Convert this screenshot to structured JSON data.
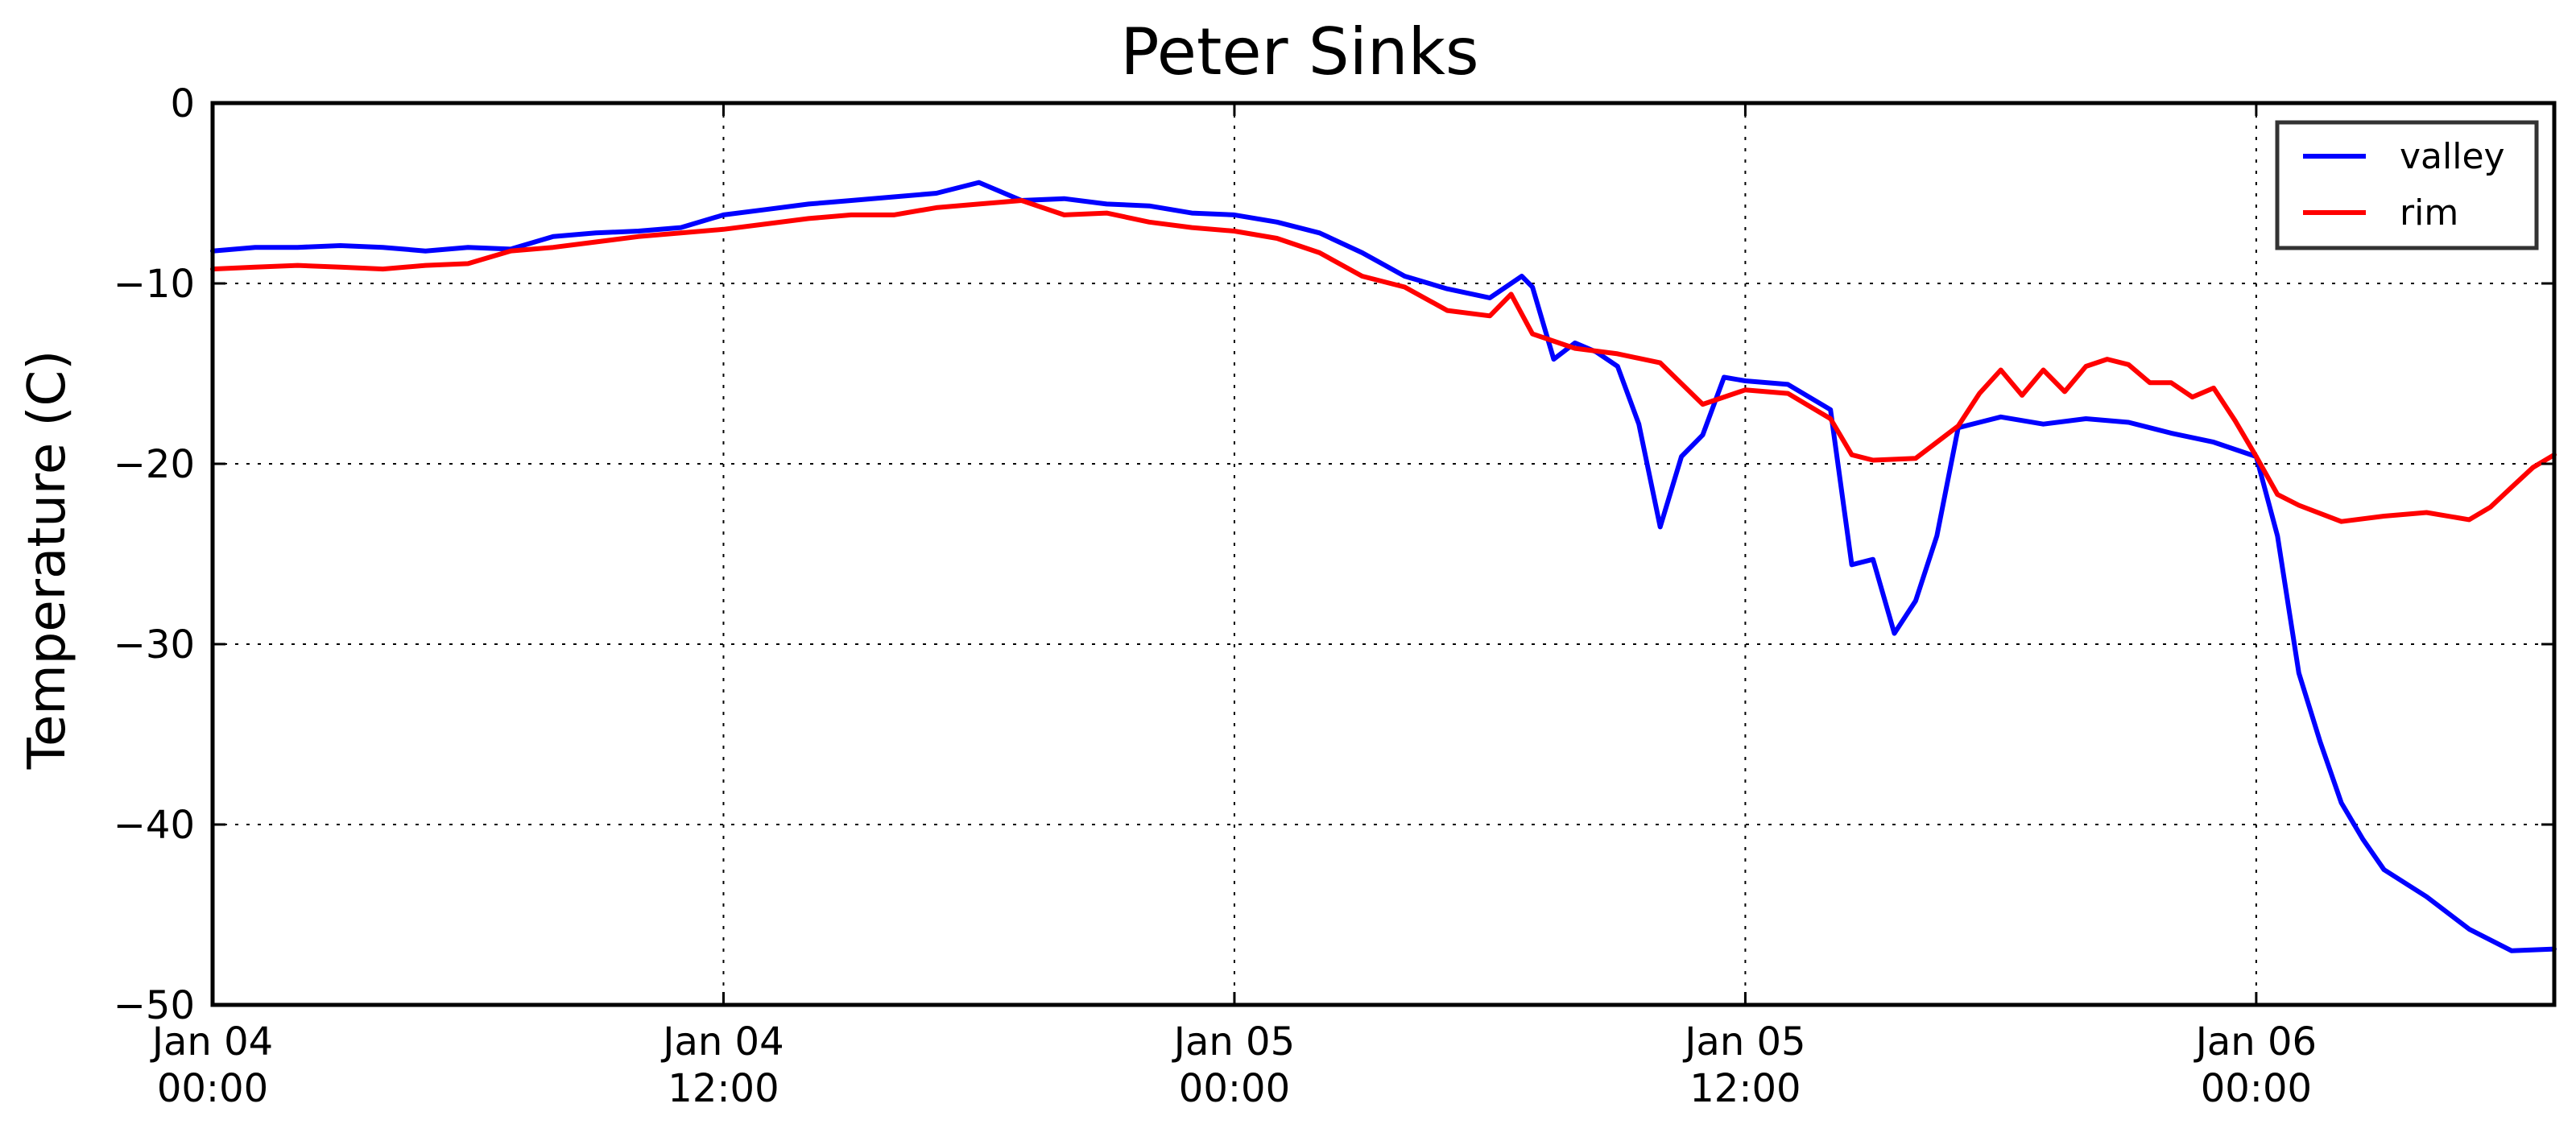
{
  "chart_data": {
    "type": "line",
    "title": "Peter Sinks",
    "xlabel": "",
    "ylabel": "Temperature (C)",
    "ylim": [
      -50,
      0
    ],
    "xlim": [
      "2016-01-04 00:00",
      "2016-01-06 07:00"
    ],
    "y_ticks": [
      0,
      -10,
      -20,
      -30,
      -40,
      -50
    ],
    "y_tick_labels": [
      "0",
      "−10",
      "−20",
      "−30",
      "−40",
      "−50"
    ],
    "x_ticks": [
      "2016-01-04 00:00",
      "2016-01-04 12:00",
      "2016-01-05 00:00",
      "2016-01-05 12:00",
      "2016-01-06 00:00"
    ],
    "x_tick_labels": [
      [
        "Jan 04",
        "00:00"
      ],
      [
        "Jan 04",
        "12:00"
      ],
      [
        "Jan 05",
        "00:00"
      ],
      [
        "Jan 05",
        "12:00"
      ],
      [
        "Jan 06",
        "00:00"
      ]
    ],
    "grid": true,
    "legend_position": "top-right",
    "series": [
      {
        "name": "valley",
        "color": "#0000ff",
        "x": [
          "2016-01-04 00:00",
          "2016-01-04 01:00",
          "2016-01-04 02:00",
          "2016-01-04 03:00",
          "2016-01-04 04:00",
          "2016-01-04 05:00",
          "2016-01-04 06:00",
          "2016-01-04 07:00",
          "2016-01-04 08:00",
          "2016-01-04 09:00",
          "2016-01-04 10:00",
          "2016-01-04 11:00",
          "2016-01-04 12:00",
          "2016-01-04 13:00",
          "2016-01-04 14:00",
          "2016-01-04 15:00",
          "2016-01-04 16:00",
          "2016-01-04 17:00",
          "2016-01-04 18:00",
          "2016-01-04 19:00",
          "2016-01-04 20:00",
          "2016-01-04 21:00",
          "2016-01-04 22:00",
          "2016-01-04 23:00",
          "2016-01-05 00:00",
          "2016-01-05 01:00",
          "2016-01-05 02:00",
          "2016-01-05 03:00",
          "2016-01-05 04:00",
          "2016-01-05 05:00",
          "2016-01-05 06:00",
          "2016-01-05 06:45",
          "2016-01-05 07:00",
          "2016-01-05 07:30",
          "2016-01-05 08:00",
          "2016-01-05 08:30",
          "2016-01-05 09:00",
          "2016-01-05 09:30",
          "2016-01-05 10:00",
          "2016-01-05 10:30",
          "2016-01-05 11:00",
          "2016-01-05 11:30",
          "2016-01-05 12:00",
          "2016-01-05 13:00",
          "2016-01-05 14:00",
          "2016-01-05 14:30",
          "2016-01-05 15:00",
          "2016-01-05 15:30",
          "2016-01-05 16:00",
          "2016-01-05 16:30",
          "2016-01-05 17:00",
          "2016-01-05 17:30",
          "2016-01-05 18:00",
          "2016-01-05 19:00",
          "2016-01-05 20:00",
          "2016-01-05 21:00",
          "2016-01-05 22:00",
          "2016-01-05 23:00",
          "2016-01-06 00:00",
          "2016-01-06 00:30",
          "2016-01-06 01:00",
          "2016-01-06 01:30",
          "2016-01-06 02:00",
          "2016-01-06 02:30",
          "2016-01-06 03:00",
          "2016-01-06 04:00",
          "2016-01-06 05:00",
          "2016-01-06 06:00",
          "2016-01-06 07:00"
        ],
        "y": [
          -8.2,
          -8.0,
          -8.0,
          -7.9,
          -8.0,
          -8.2,
          -8.0,
          -8.1,
          -7.4,
          -7.2,
          -7.1,
          -6.9,
          -6.2,
          -5.9,
          -5.6,
          -5.4,
          -5.2,
          -5.0,
          -4.4,
          -5.4,
          -5.3,
          -5.6,
          -5.7,
          -6.1,
          -6.2,
          -6.6,
          -7.2,
          -8.3,
          -9.6,
          -10.3,
          -10.8,
          -9.6,
          -10.2,
          -14.2,
          -13.3,
          -13.8,
          -14.6,
          -17.8,
          -23.5,
          -19.6,
          -18.4,
          -15.2,
          -15.4,
          -15.6,
          -17.0,
          -25.6,
          -25.3,
          -29.4,
          -27.6,
          -24.0,
          -18.0,
          -17.7,
          -17.4,
          -17.8,
          -17.5,
          -17.7,
          -18.3,
          -18.8,
          -19.6,
          -24.0,
          -31.6,
          -35.4,
          -38.8,
          -40.8,
          -42.5,
          -44.0,
          -45.8,
          -47.0,
          -46.9
        ]
      },
      {
        "name": "rim",
        "color": "#ff0000",
        "x": [
          "2016-01-04 00:00",
          "2016-01-04 01:00",
          "2016-01-04 02:00",
          "2016-01-04 03:00",
          "2016-01-04 04:00",
          "2016-01-04 05:00",
          "2016-01-04 06:00",
          "2016-01-04 07:00",
          "2016-01-04 08:00",
          "2016-01-04 09:00",
          "2016-01-04 10:00",
          "2016-01-04 11:00",
          "2016-01-04 12:00",
          "2016-01-04 13:00",
          "2016-01-04 14:00",
          "2016-01-04 15:00",
          "2016-01-04 16:00",
          "2016-01-04 17:00",
          "2016-01-04 18:00",
          "2016-01-04 19:00",
          "2016-01-04 20:00",
          "2016-01-04 21:00",
          "2016-01-04 22:00",
          "2016-01-04 23:00",
          "2016-01-05 00:00",
          "2016-01-05 01:00",
          "2016-01-05 02:00",
          "2016-01-05 03:00",
          "2016-01-05 04:00",
          "2016-01-05 05:00",
          "2016-01-05 06:00",
          "2016-01-05 06:30",
          "2016-01-05 07:00",
          "2016-01-05 08:00",
          "2016-01-05 09:00",
          "2016-01-05 10:00",
          "2016-01-05 11:00",
          "2016-01-05 12:00",
          "2016-01-05 13:00",
          "2016-01-05 14:00",
          "2016-01-05 14:30",
          "2016-01-05 15:00",
          "2016-01-05 16:00",
          "2016-01-05 17:00",
          "2016-01-05 17:30",
          "2016-01-05 18:00",
          "2016-01-05 18:30",
          "2016-01-05 19:00",
          "2016-01-05 19:30",
          "2016-01-05 20:00",
          "2016-01-05 20:30",
          "2016-01-05 21:00",
          "2016-01-05 21:30",
          "2016-01-05 22:00",
          "2016-01-05 22:30",
          "2016-01-05 23:00",
          "2016-01-05 23:30",
          "2016-01-06 00:00",
          "2016-01-06 00:30",
          "2016-01-06 01:00",
          "2016-01-06 02:00",
          "2016-01-06 03:00",
          "2016-01-06 04:00",
          "2016-01-06 05:00",
          "2016-01-06 05:30",
          "2016-01-06 06:00",
          "2016-01-06 06:30",
          "2016-01-06 07:00"
        ],
        "y": [
          -9.2,
          -9.1,
          -9.0,
          -9.1,
          -9.2,
          -9.0,
          -8.9,
          -8.2,
          -8.0,
          -7.7,
          -7.4,
          -7.2,
          -7.0,
          -6.7,
          -6.4,
          -6.2,
          -6.2,
          -5.8,
          -5.6,
          -5.4,
          -6.2,
          -6.1,
          -6.6,
          -6.9,
          -7.1,
          -7.5,
          -8.3,
          -9.6,
          -10.2,
          -11.5,
          -11.8,
          -10.6,
          -12.8,
          -13.6,
          -13.9,
          -14.4,
          -16.7,
          -15.9,
          -16.1,
          -17.5,
          -19.5,
          -19.8,
          -19.7,
          -17.9,
          -16.1,
          -14.8,
          -16.2,
          -14.8,
          -16.0,
          -14.6,
          -14.2,
          -14.5,
          -15.5,
          -15.5,
          -16.3,
          -15.8,
          -17.6,
          -19.6,
          -21.7,
          -22.3,
          -23.2,
          -22.9,
          -22.7,
          -23.1,
          -22.4,
          -21.3,
          -20.2,
          -19.5
        ]
      }
    ]
  }
}
